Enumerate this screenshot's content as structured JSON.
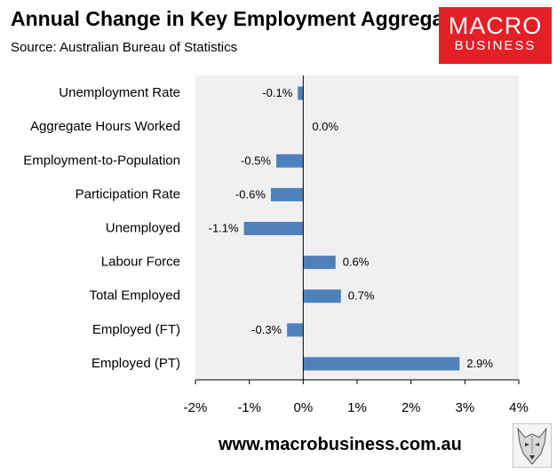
{
  "header": {
    "title": "Annual Change in Key Employment Aggregates",
    "subtitle": "Source: Australian Bureau of Statistics"
  },
  "logo": {
    "line1": "MACRO",
    "line2": "BUSINESS",
    "color": "#e41f26"
  },
  "footer": {
    "url": "www.macrobusiness.com.au",
    "icon": "wolf-icon"
  },
  "chart_data": {
    "type": "bar",
    "orientation": "horizontal",
    "categories": [
      "Unemployment Rate",
      "Aggregate Hours Worked",
      "Employment-to-Population",
      "Participation Rate",
      "Unemployed",
      "Labour Force",
      "Total Employed",
      "Employed (FT)",
      "Employed (PT)"
    ],
    "values": [
      -0.1,
      0.0,
      -0.5,
      -0.6,
      -1.1,
      0.6,
      0.7,
      -0.3,
      2.9
    ],
    "data_labels": [
      "-0.1%",
      "0.0%",
      "-0.5%",
      "-0.6%",
      "-1.1%",
      "0.6%",
      "0.7%",
      "-0.3%",
      "2.9%"
    ],
    "xlim": [
      -2,
      4
    ],
    "x_ticks": [
      -2,
      -1,
      0,
      1,
      2,
      3,
      4
    ],
    "x_tick_labels": [
      "-2%",
      "-1%",
      "0%",
      "1%",
      "2%",
      "3%",
      "4%"
    ],
    "title": "Annual Change in Key Employment Aggregates",
    "xlabel": "",
    "ylabel": "",
    "bar_color": "#4f81bd",
    "grid": false,
    "legend": "none"
  }
}
